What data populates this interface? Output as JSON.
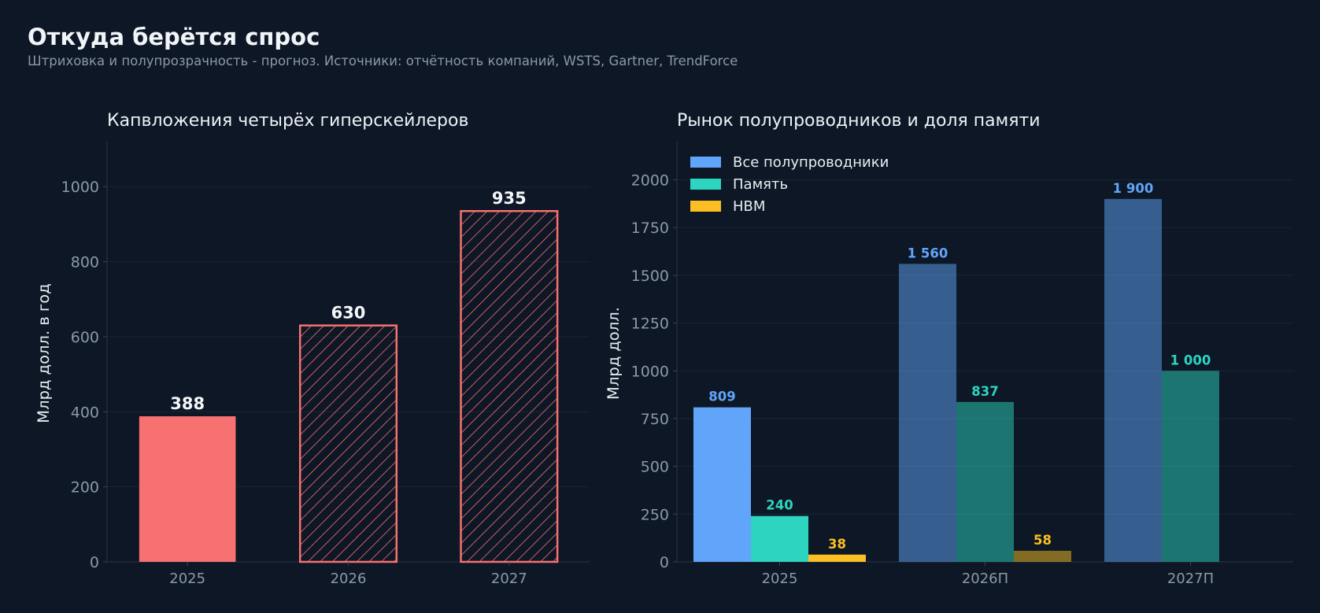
{
  "header": {
    "title": "Откуда берётся спрос",
    "subtitle": "Штриховка и полупрозрачность - прогноз. Источники: отчётность компаний, WSTS, Gartner, TrendForce"
  },
  "colors": {
    "background": "#0d1725",
    "capex": "#f87171",
    "all_semis": "#60a5fa",
    "memory": "#2dd4bf",
    "hbm": "#fbbf24",
    "muted_text": "#8d99a8",
    "grid": "#1a2535"
  },
  "chart_data": [
    {
      "type": "bar",
      "title": "Капвложения четырёх гиперскейлеров",
      "categories": [
        "2025",
        "2026",
        "2027"
      ],
      "values": [
        388,
        630,
        935
      ],
      "value_labels": [
        "388",
        "630",
        "935"
      ],
      "forecast": [
        false,
        true,
        true
      ],
      "ylabel": "Млрд долл. в год",
      "ylim": [
        0,
        1120
      ],
      "yticks": [
        0,
        200,
        400,
        600,
        800,
        1000
      ],
      "ytick_labels": [
        "0",
        "200",
        "400",
        "600",
        "800",
        "1000"
      ],
      "grid": true
    },
    {
      "type": "bar",
      "title": "Рынок полупроводников и доля памяти",
      "categories": [
        "2025",
        "2026П",
        "2027П"
      ],
      "forecast": [
        false,
        true,
        true
      ],
      "series": [
        {
          "name": "Все полупроводники",
          "values": [
            809,
            1560,
            1900
          ],
          "value_labels": [
            "809",
            "1 560",
            "1 900"
          ],
          "color": "#60a5fa"
        },
        {
          "name": "Память",
          "values": [
            240,
            837,
            1000
          ],
          "value_labels": [
            "240",
            "837",
            "1 000"
          ],
          "color": "#2dd4bf"
        },
        {
          "name": "HBM",
          "values": [
            38,
            58,
            null
          ],
          "value_labels": [
            "38",
            "58",
            ""
          ],
          "color": "#fbbf24"
        }
      ],
      "ylabel": "Млрд долл.",
      "ylim": [
        0,
        2200
      ],
      "yticks": [
        0,
        250,
        500,
        750,
        1000,
        1250,
        1500,
        1750,
        2000
      ],
      "ytick_labels": [
        "0",
        "250",
        "500",
        "750",
        "1000",
        "1250",
        "1500",
        "1750",
        "2000"
      ],
      "legend": "top-left",
      "grid": true
    }
  ]
}
